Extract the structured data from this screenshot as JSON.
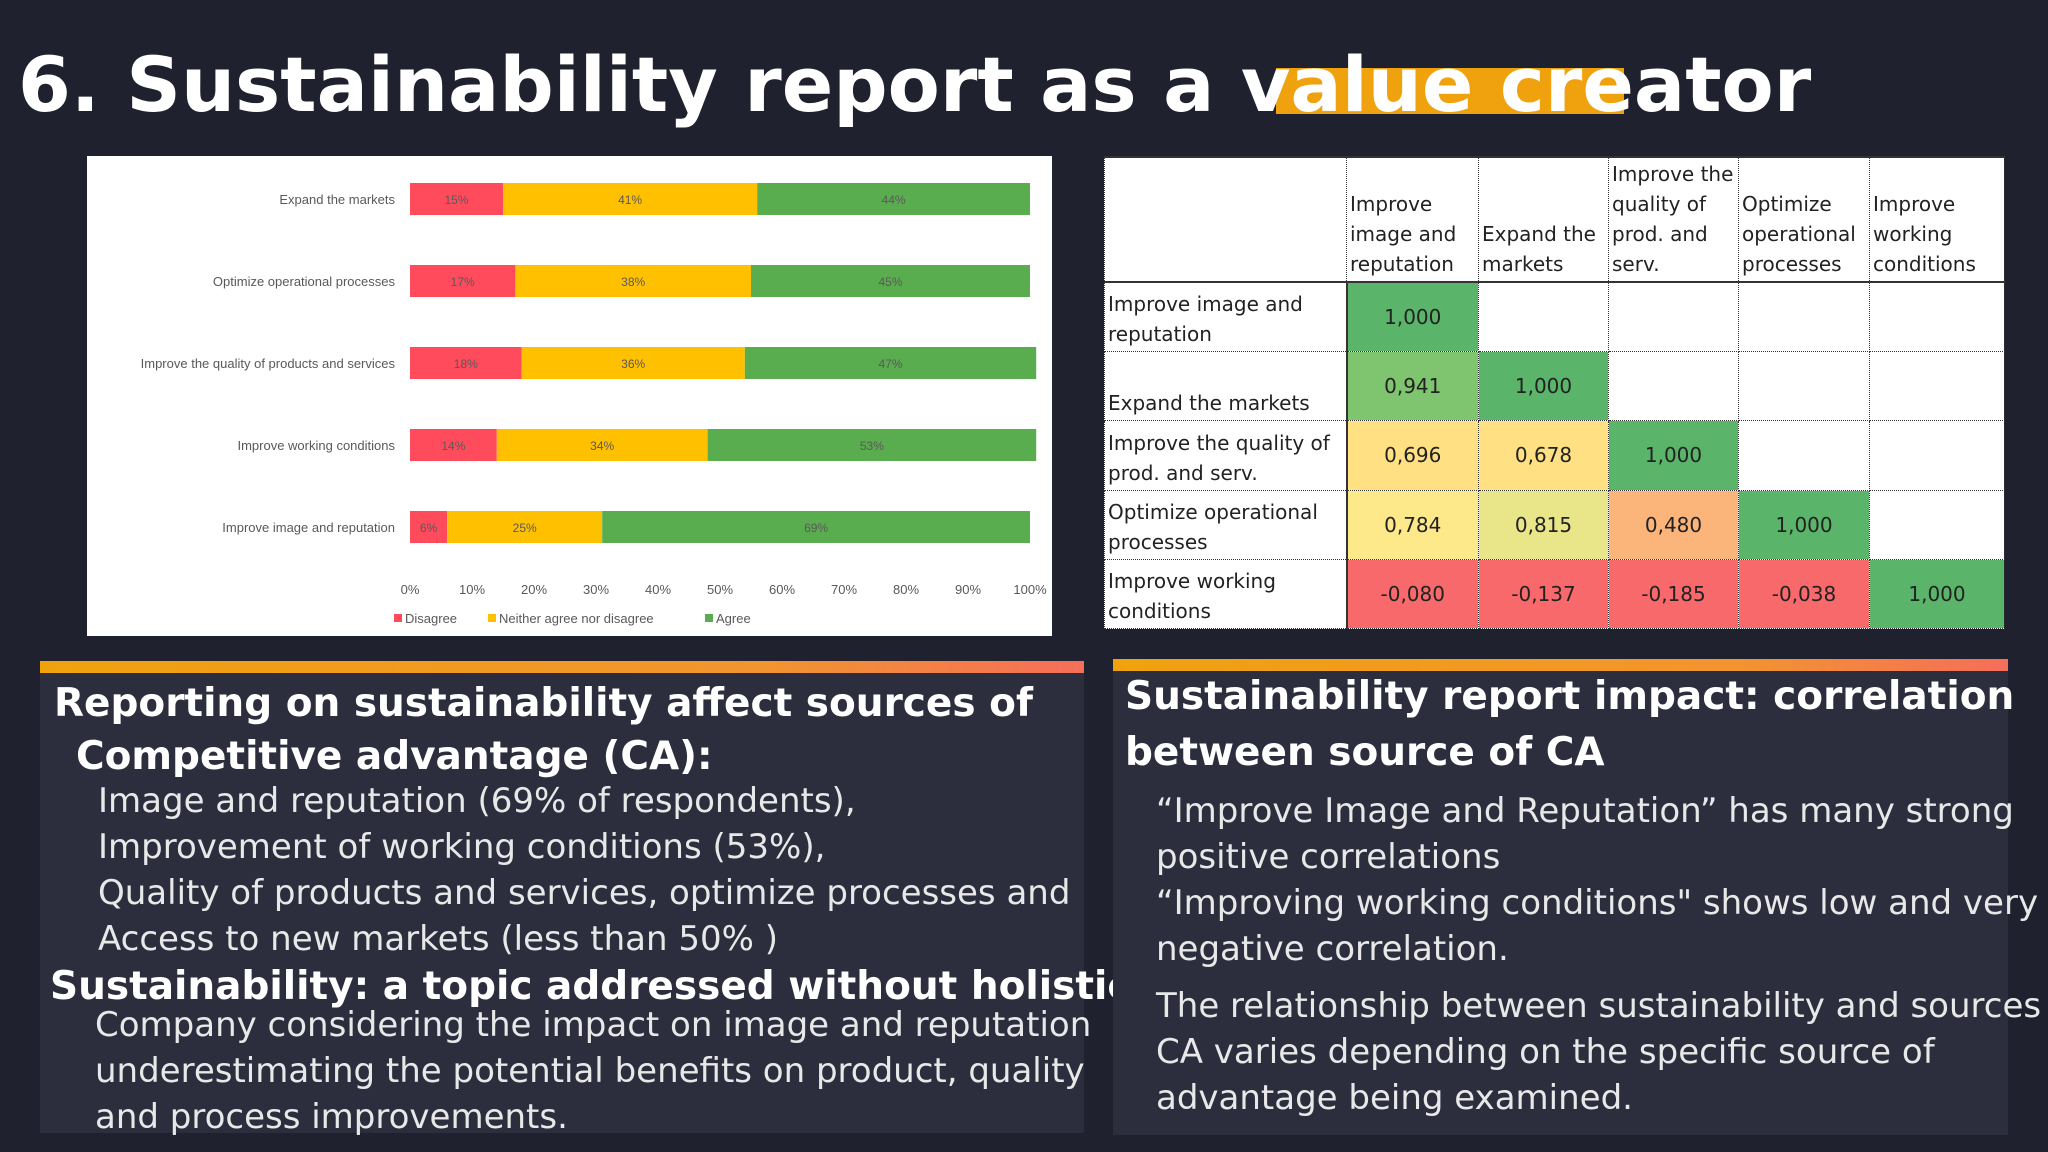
{
  "title": "6. Sustainability report as a value creator",
  "colors": {
    "background": "#1f212e",
    "accent": "#f0a20e",
    "disagree": "#ff4b5c",
    "neither": "#ffc000",
    "agree": "#5aad4e"
  },
  "chart_data": {
    "type": "bar",
    "orientation": "horizontal",
    "stacked": "100%",
    "categories": [
      "Expand the markets",
      "Optimize operational processes",
      "Improve the quality of products and services",
      "Improve working conditions",
      "Improve image and reputation"
    ],
    "series": [
      {
        "name": "Disagree",
        "values": [
          15,
          17,
          18,
          14,
          6
        ],
        "color": "#ff4b5c"
      },
      {
        "name": "Neither agree nor disagree",
        "values": [
          41,
          38,
          36,
          34,
          25
        ],
        "color": "#ffc000"
      },
      {
        "name": "Agree",
        "values": [
          44,
          45,
          47,
          53,
          69
        ],
        "color": "#5aad4e"
      }
    ],
    "xlim": [
      0,
      100
    ],
    "xticks": [
      "0%",
      "10%",
      "20%",
      "30%",
      "40%",
      "50%",
      "60%",
      "70%",
      "80%",
      "90%",
      "100%"
    ],
    "legend_position": "bottom"
  },
  "correlation": {
    "columns": [
      "Improve image and reputation",
      "Expand the markets",
      "Improve the quality of prod. and serv.",
      "Optimize operational processes",
      "Improve working conditions"
    ],
    "rows": [
      {
        "label": "Improve image and reputation",
        "values": [
          "1,000",
          "",
          "",
          "",
          ""
        ],
        "colors": [
          "#5ab46a",
          "",
          "",
          "",
          ""
        ]
      },
      {
        "label": "Expand the markets",
        "values": [
          "0,941",
          "1,000",
          "",
          "",
          ""
        ],
        "colors": [
          "#7fc56f",
          "#5ab46a",
          "",
          "",
          ""
        ]
      },
      {
        "label": "Improve the quality of prod. and serv.",
        "values": [
          "0,696",
          "0,678",
          "1,000",
          "",
          ""
        ],
        "colors": [
          "#ffe083",
          "#ffe083",
          "#5ab46a",
          "",
          ""
        ]
      },
      {
        "label": "Optimize operational processes",
        "values": [
          "0,784",
          "0,815",
          "0,480",
          "1,000",
          ""
        ],
        "colors": [
          "#fde88a",
          "#e9e68a",
          "#fbb57a",
          "#5ab46a",
          ""
        ]
      },
      {
        "label": "Improve working conditions",
        "values": [
          "-0,080",
          "-0,137",
          "-0,185",
          "-0,038",
          "1,000"
        ],
        "colors": [
          "#f8696b",
          "#f8696b",
          "#f8696b",
          "#f8696b",
          "#5ab46a"
        ]
      }
    ]
  },
  "left_section": {
    "heading_line1": "Reporting on sustainability affect sources of",
    "heading_line2": "Competitive advantage (CA):",
    "bullets": [
      "Image and reputation (69% of respondents),",
      "Improvement of working conditions (53%),",
      "Quality of products and services, optimize processes and",
      "Access to new markets (less than 50% )"
    ],
    "heading2": "Sustainability: a topic addressed without holistic view",
    "paragraph": [
      "Company considering the impact on image and reputation",
      "underestimating the potential benefits on product, quality",
      "and process improvements."
    ]
  },
  "right_section": {
    "heading_line1": "Sustainability report impact: correlation",
    "heading_line2": "between source of CA",
    "lines": [
      "“Improve Image and Reputation” has many strong",
      "positive correlations",
      "“Improving working conditions\" shows low and very low",
      "negative correlation."
    ],
    "paragraph": [
      "The relationship between sustainability and sources of",
      "CA varies depending on the specific source of",
      "advantage being examined."
    ]
  }
}
